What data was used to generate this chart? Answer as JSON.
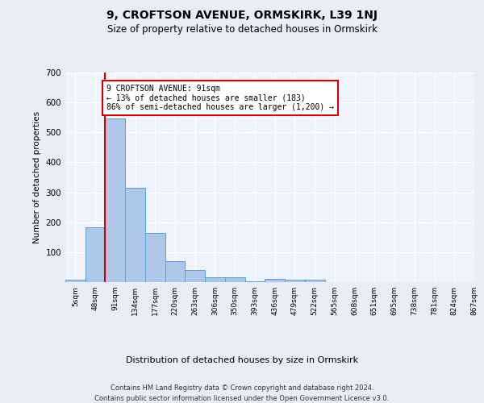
{
  "title": "9, CROFTSON AVENUE, ORMSKIRK, L39 1NJ",
  "subtitle": "Size of property relative to detached houses in Ormskirk",
  "xlabel": "Distribution of detached houses by size in Ormskirk",
  "ylabel": "Number of detached properties",
  "bin_labels": [
    "5sqm",
    "48sqm",
    "91sqm",
    "134sqm",
    "177sqm",
    "220sqm",
    "263sqm",
    "306sqm",
    "350sqm",
    "393sqm",
    "436sqm",
    "479sqm",
    "522sqm",
    "565sqm",
    "608sqm",
    "651sqm",
    "695sqm",
    "738sqm",
    "781sqm",
    "824sqm",
    "867sqm"
  ],
  "bar_heights": [
    8,
    183,
    547,
    315,
    165,
    70,
    40,
    16,
    15,
    3,
    10,
    9,
    8,
    0,
    0,
    0,
    0,
    0,
    0,
    0
  ],
  "bar_color": "#aec6e8",
  "bar_edge_color": "#5a9fd4",
  "red_line_bin_index": 2,
  "annotation_text": "9 CROFTSON AVENUE: 91sqm\n← 13% of detached houses are smaller (183)\n86% of semi-detached houses are larger (1,200) →",
  "annotation_box_color": "#ffffff",
  "annotation_box_edge_color": "#cc0000",
  "red_line_color": "#cc0000",
  "ylim": [
    0,
    700
  ],
  "yticks": [
    0,
    100,
    200,
    300,
    400,
    500,
    600,
    700
  ],
  "footer_text": "Contains HM Land Registry data © Crown copyright and database right 2024.\nContains public sector information licensed under the Open Government Licence v3.0.",
  "background_color": "#e8edf8",
  "plot_background_color": "#f0f3fc",
  "grid_color": "#ffffff"
}
